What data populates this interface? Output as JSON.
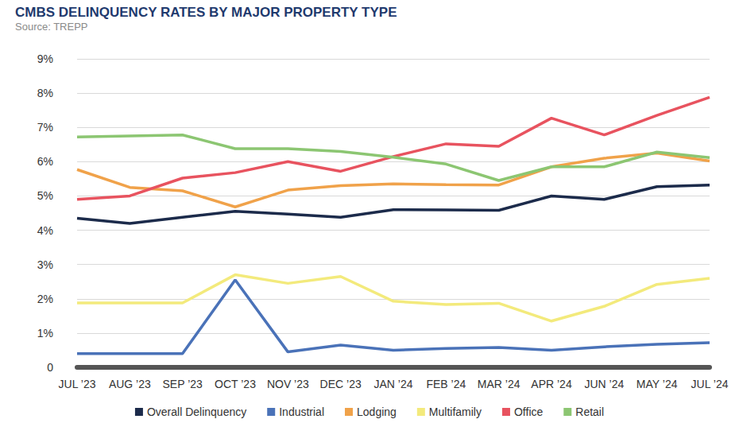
{
  "chart_data": {
    "type": "line",
    "title": "CMBS DELINQUENCY RATES BY MAJOR PROPERTY TYPE",
    "subtitle": "Source: TREPP",
    "categories": [
      "JUL ’23",
      "AUG ’23",
      "SEP ’23",
      "OCT ’23",
      "NOV ’23",
      "DEC ’23",
      "JAN ’24",
      "FEB ’24",
      "MAR ’24",
      "APR ’24",
      "JUN ’24",
      "MAY ’24",
      "JUL ’24"
    ],
    "series": [
      {
        "name": "Overall Delinquency",
        "color": "#1c2b4b",
        "values": [
          4.35,
          4.2,
          4.38,
          4.55,
          4.47,
          4.38,
          4.6,
          4.59,
          4.58,
          5.0,
          4.9,
          5.27,
          5.32
        ]
      },
      {
        "name": "Industrial",
        "color": "#4a72b8",
        "values": [
          0.4,
          0.4,
          0.4,
          2.55,
          0.45,
          0.65,
          0.5,
          0.55,
          0.58,
          0.5,
          0.6,
          0.67,
          0.72
        ]
      },
      {
        "name": "Lodging",
        "color": "#f0a24a",
        "values": [
          5.77,
          5.25,
          5.15,
          4.68,
          5.17,
          5.3,
          5.35,
          5.33,
          5.32,
          5.85,
          6.1,
          6.25,
          6.02
        ]
      },
      {
        "name": "Multifamily",
        "color": "#f3ea7c",
        "values": [
          1.88,
          1.88,
          1.88,
          2.7,
          2.45,
          2.65,
          1.93,
          1.83,
          1.87,
          1.35,
          1.78,
          2.42,
          2.6
        ]
      },
      {
        "name": "Office",
        "color": "#e8535f",
        "values": [
          4.9,
          5.0,
          5.52,
          5.68,
          6.0,
          5.72,
          6.15,
          6.52,
          6.45,
          7.27,
          6.78,
          7.35,
          7.88
        ]
      },
      {
        "name": "Retail",
        "color": "#8cc672",
        "values": [
          6.72,
          6.75,
          6.78,
          6.38,
          6.38,
          6.3,
          6.13,
          5.93,
          5.45,
          5.85,
          5.85,
          6.28,
          6.12
        ]
      }
    ],
    "ylim": [
      0,
      9
    ],
    "yticks": [
      0,
      {
        "value": 1,
        "label": "1%"
      },
      {
        "value": 2,
        "label": "2%"
      },
      {
        "value": 3,
        "label": "3%"
      },
      {
        "value": 4,
        "label": "4%"
      },
      {
        "value": 5,
        "label": "5%"
      },
      {
        "value": 6,
        "label": "6%"
      },
      {
        "value": 7,
        "label": "7%"
      },
      {
        "value": 8,
        "label": "8%"
      },
      {
        "value": 9,
        "label": "9%"
      }
    ],
    "grid": true,
    "legend": "bottom"
  }
}
